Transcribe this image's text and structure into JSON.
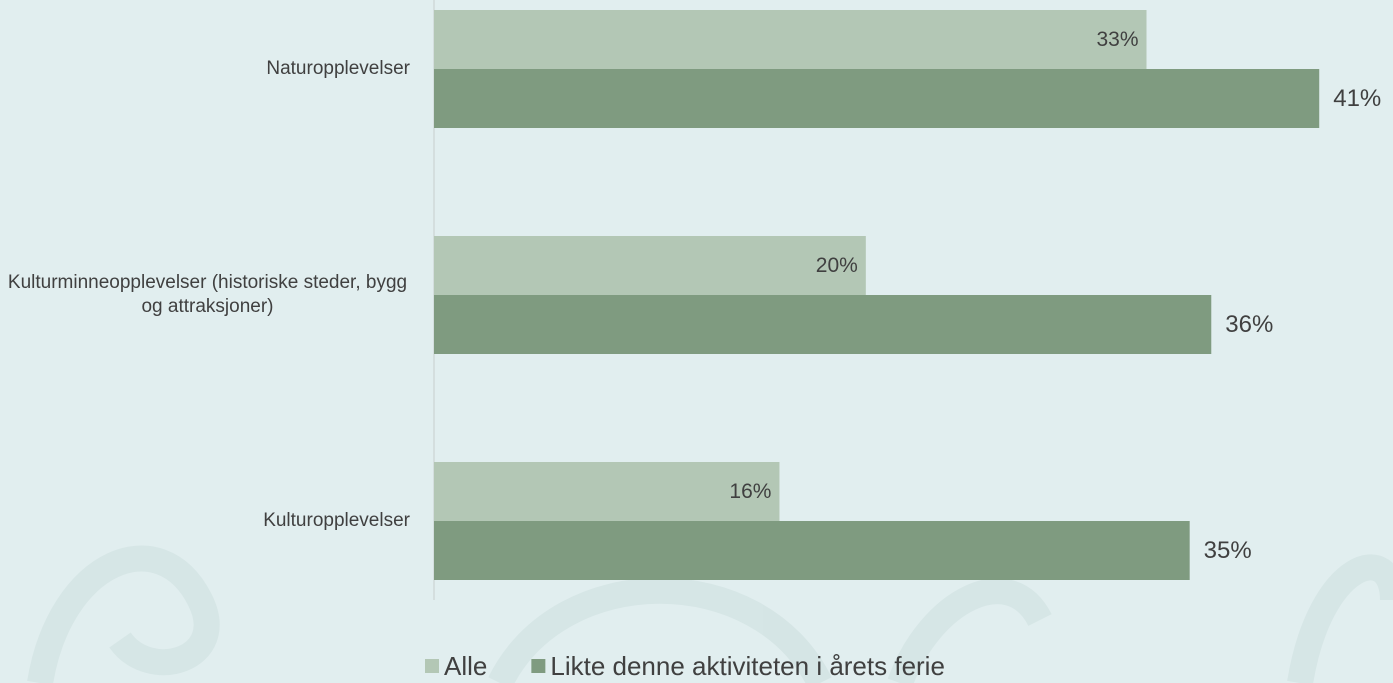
{
  "chart_data": {
    "type": "bar",
    "orientation": "horizontal",
    "categories": [
      "Naturopplevelser",
      "Kulturminneopplevelser (historiske steder, bygg og attraksjoner)",
      "Kulturopplevelser"
    ],
    "series": [
      {
        "name": "Alle",
        "color": "#b3c7b5",
        "values": [
          33,
          20,
          16
        ],
        "value_labels": [
          "33%",
          "20%",
          "16%"
        ]
      },
      {
        "name": "Likte denne aktiviteten i årets ferie",
        "color": "#7f9b80",
        "values": [
          41,
          36,
          35
        ],
        "value_labels": [
          "41%",
          "36%",
          "35%"
        ]
      }
    ],
    "xlim": [
      0,
      44
    ],
    "grid": false,
    "legend": "bottom"
  }
}
